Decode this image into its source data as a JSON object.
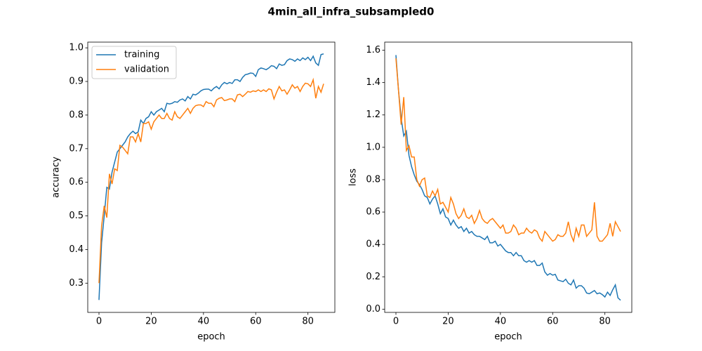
{
  "title": "4min_all_infra_subsampled0",
  "chart_data": [
    {
      "type": "line",
      "xlabel": "epoch",
      "ylabel": "accuracy",
      "x": [
        0,
        1,
        2,
        3,
        4,
        5,
        6,
        7,
        8,
        9,
        10,
        11,
        12,
        13,
        14,
        15,
        16,
        17,
        18,
        19,
        20,
        21,
        22,
        23,
        24,
        25,
        26,
        27,
        28,
        29,
        30,
        31,
        32,
        33,
        34,
        35,
        36,
        37,
        38,
        39,
        40,
        41,
        42,
        43,
        44,
        45,
        46,
        47,
        48,
        49,
        50,
        51,
        52,
        53,
        54,
        55,
        56,
        57,
        58,
        59,
        60,
        61,
        62,
        63,
        64,
        65,
        66,
        67,
        68,
        69,
        70,
        71,
        72,
        73,
        74,
        75,
        76,
        77,
        78,
        79,
        80,
        81,
        82,
        83,
        84,
        85,
        86
      ],
      "xlim": [
        -4.3,
        90.3
      ],
      "xticks": [
        0,
        20,
        40,
        60,
        80
      ],
      "ylim": [
        0.213,
        1.017
      ],
      "yticks": [
        0.3,
        0.4,
        0.5,
        0.6,
        0.7,
        0.8,
        0.9,
        {
          "value": 1,
          "label": "1.0"
        }
      ],
      "legend": "upper left",
      "series": [
        {
          "name": "training",
          "color": "#1f77b4",
          "values": [
            0.25,
            0.42,
            0.5,
            0.585,
            0.58,
            0.63,
            0.66,
            0.69,
            0.7,
            0.71,
            0.72,
            0.735,
            0.745,
            0.752,
            0.745,
            0.75,
            0.785,
            0.775,
            0.79,
            0.795,
            0.81,
            0.8,
            0.81,
            0.815,
            0.82,
            0.81,
            0.835,
            0.833,
            0.835,
            0.84,
            0.838,
            0.845,
            0.848,
            0.842,
            0.855,
            0.848,
            0.862,
            0.86,
            0.865,
            0.872,
            0.876,
            0.877,
            0.877,
            0.872,
            0.88,
            0.885,
            0.878,
            0.89,
            0.897,
            0.893,
            0.897,
            0.894,
            0.905,
            0.905,
            0.9,
            0.912,
            0.92,
            0.922,
            0.925,
            0.924,
            0.915,
            0.935,
            0.94,
            0.938,
            0.935,
            0.94,
            0.947,
            0.945,
            0.938,
            0.952,
            0.948,
            0.95,
            0.962,
            0.967,
            0.965,
            0.96,
            0.967,
            0.962,
            0.97,
            0.965,
            0.972,
            0.962,
            0.975,
            0.955,
            0.948,
            0.98,
            0.982
          ]
        },
        {
          "name": "validation",
          "color": "#ff7f0e",
          "values": [
            0.3,
            0.47,
            0.53,
            0.495,
            0.625,
            0.595,
            0.64,
            0.635,
            0.71,
            0.705,
            0.695,
            0.685,
            0.735,
            0.735,
            0.72,
            0.745,
            0.72,
            0.775,
            0.775,
            0.78,
            0.758,
            0.78,
            0.79,
            0.8,
            0.79,
            0.79,
            0.805,
            0.79,
            0.785,
            0.81,
            0.795,
            0.79,
            0.8,
            0.81,
            0.82,
            0.805,
            0.82,
            0.828,
            0.83,
            0.83,
            0.825,
            0.84,
            0.835,
            0.835,
            0.825,
            0.845,
            0.85,
            0.852,
            0.843,
            0.845,
            0.848,
            0.848,
            0.84,
            0.86,
            0.862,
            0.855,
            0.862,
            0.87,
            0.868,
            0.872,
            0.87,
            0.875,
            0.87,
            0.875,
            0.87,
            0.878,
            0.875,
            0.848,
            0.868,
            0.885,
            0.872,
            0.875,
            0.862,
            0.875,
            0.89,
            0.88,
            0.885,
            0.87,
            0.885,
            0.895,
            0.893,
            0.885,
            0.905,
            0.85,
            0.885,
            0.868,
            0.893
          ]
        }
      ]
    },
    {
      "type": "line",
      "xlabel": "epoch",
      "ylabel": "loss",
      "x": [
        0,
        1,
        2,
        3,
        4,
        5,
        6,
        7,
        8,
        9,
        10,
        11,
        12,
        13,
        14,
        15,
        16,
        17,
        18,
        19,
        20,
        21,
        22,
        23,
        24,
        25,
        26,
        27,
        28,
        29,
        30,
        31,
        32,
        33,
        34,
        35,
        36,
        37,
        38,
        39,
        40,
        41,
        42,
        43,
        44,
        45,
        46,
        47,
        48,
        49,
        50,
        51,
        52,
        53,
        54,
        55,
        56,
        57,
        58,
        59,
        60,
        61,
        62,
        63,
        64,
        65,
        66,
        67,
        68,
        69,
        70,
        71,
        72,
        73,
        74,
        75,
        76,
        77,
        78,
        79,
        80,
        81,
        82,
        83,
        84,
        85,
        86
      ],
      "xlim": [
        -4.3,
        90.3
      ],
      "xticks": [
        0,
        20,
        40,
        60,
        80
      ],
      "ylim": [
        -0.02,
        1.65
      ],
      "yticks": [
        {
          "value": 0,
          "label": "0.0"
        },
        0.2,
        0.4,
        0.6,
        0.8,
        {
          "value": 1,
          "label": "1.0"
        },
        1.2,
        1.4,
        1.6
      ],
      "series": [
        {
          "color": "#1f77b4",
          "values": [
            1.57,
            1.35,
            1.18,
            1.07,
            1.1,
            0.95,
            0.88,
            0.83,
            0.79,
            0.77,
            0.74,
            0.7,
            0.69,
            0.65,
            0.68,
            0.7,
            0.65,
            0.59,
            0.62,
            0.57,
            0.56,
            0.52,
            0.55,
            0.52,
            0.5,
            0.51,
            0.48,
            0.5,
            0.47,
            0.48,
            0.46,
            0.45,
            0.45,
            0.44,
            0.43,
            0.45,
            0.41,
            0.41,
            0.42,
            0.39,
            0.4,
            0.38,
            0.36,
            0.35,
            0.35,
            0.33,
            0.35,
            0.33,
            0.33,
            0.3,
            0.29,
            0.3,
            0.29,
            0.3,
            0.27,
            0.27,
            0.285,
            0.23,
            0.21,
            0.22,
            0.21,
            0.215,
            0.18,
            0.175,
            0.17,
            0.185,
            0.16,
            0.15,
            0.18,
            0.13,
            0.145,
            0.145,
            0.13,
            0.1,
            0.095,
            0.105,
            0.115,
            0.095,
            0.1,
            0.09,
            0.075,
            0.105,
            0.085,
            0.12,
            0.15,
            0.07,
            0.055
          ]
        },
        {
          "color": "#ff7f0e",
          "values": [
            1.55,
            1.35,
            1.14,
            1.31,
            0.98,
            1.01,
            0.94,
            0.94,
            0.8,
            0.76,
            0.8,
            0.81,
            0.7,
            0.69,
            0.73,
            0.7,
            0.74,
            0.65,
            0.66,
            0.63,
            0.6,
            0.69,
            0.65,
            0.59,
            0.56,
            0.58,
            0.62,
            0.57,
            0.56,
            0.58,
            0.53,
            0.56,
            0.61,
            0.56,
            0.54,
            0.53,
            0.55,
            0.56,
            0.54,
            0.52,
            0.5,
            0.52,
            0.47,
            0.47,
            0.48,
            0.52,
            0.5,
            0.46,
            0.47,
            0.47,
            0.5,
            0.48,
            0.47,
            0.49,
            0.48,
            0.44,
            0.42,
            0.48,
            0.46,
            0.44,
            0.42,
            0.43,
            0.46,
            0.45,
            0.45,
            0.47,
            0.54,
            0.46,
            0.42,
            0.5,
            0.45,
            0.52,
            0.52,
            0.45,
            0.47,
            0.49,
            0.66,
            0.45,
            0.42,
            0.42,
            0.44,
            0.46,
            0.53,
            0.45,
            0.54,
            0.51,
            0.48
          ]
        }
      ]
    }
  ]
}
